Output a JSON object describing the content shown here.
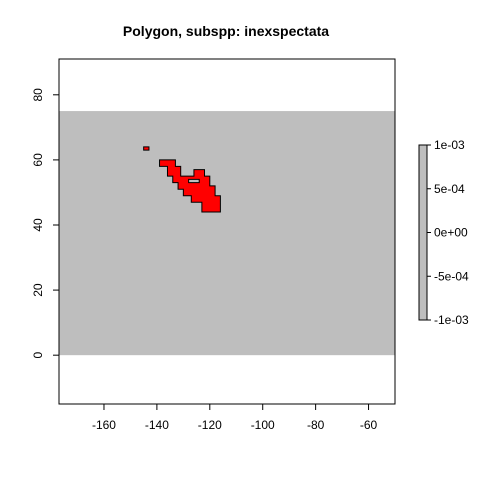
{
  "chart_data": {
    "type": "heatmap",
    "title": "Polygon, subspp: inexspectata",
    "xlabel": "",
    "ylabel": "",
    "xlim": [
      -177,
      -50
    ],
    "ylim": [
      -15,
      91
    ],
    "x_ticks": [
      {
        "value": -160,
        "label": "-160"
      },
      {
        "value": -140,
        "label": "-140"
      },
      {
        "value": -120,
        "label": "-120"
      },
      {
        "value": -100,
        "label": "-100"
      },
      {
        "value": -80,
        "label": "-80"
      },
      {
        "value": -60,
        "label": "-60"
      }
    ],
    "y_ticks": [
      {
        "value": 0,
        "label": "0"
      },
      {
        "value": 20,
        "label": "20"
      },
      {
        "value": 40,
        "label": "40"
      },
      {
        "value": 60,
        "label": "60"
      },
      {
        "value": 80,
        "label": "80"
      }
    ],
    "raster": {
      "xmin": -177,
      "xmax": -50,
      "ymin": 0,
      "ymax": 75,
      "value": 0,
      "color": "#bebebe"
    },
    "polygon": {
      "fill": "#ff0000",
      "stroke": "#000000",
      "parts": [
        [
          [
            -145,
            63
          ],
          [
            -143,
            63
          ],
          [
            -143,
            64
          ],
          [
            -145,
            64
          ]
        ],
        [
          [
            -139,
            58
          ],
          [
            -139,
            60
          ],
          [
            -133,
            60
          ],
          [
            -133,
            58
          ],
          [
            -131,
            58
          ],
          [
            -131,
            55
          ],
          [
            -126,
            55
          ],
          [
            -126,
            57
          ],
          [
            -122,
            57
          ],
          [
            -122,
            55
          ],
          [
            -120,
            55
          ],
          [
            -120,
            52
          ],
          [
            -118,
            52
          ],
          [
            -118,
            49
          ],
          [
            -116,
            49
          ],
          [
            -116,
            44
          ],
          [
            -123,
            44
          ],
          [
            -123,
            47
          ],
          [
            -127,
            47
          ],
          [
            -127,
            49
          ],
          [
            -130,
            49
          ],
          [
            -130,
            51
          ],
          [
            -132,
            51
          ],
          [
            -132,
            53
          ],
          [
            -134,
            53
          ],
          [
            -134,
            55
          ],
          [
            -136,
            55
          ],
          [
            -136,
            58
          ]
        ]
      ],
      "hole": [
        [
          -128,
          53
        ],
        [
          -128,
          54
        ],
        [
          -124,
          54
        ],
        [
          -124,
          53
        ]
      ]
    },
    "legend": {
      "position": "right",
      "ticks": [
        {
          "value": 0.001,
          "label": "1e-03"
        },
        {
          "value": 0.0005,
          "label": "5e-04"
        },
        {
          "value": 0,
          "label": "0e+00"
        },
        {
          "value": -0.0005,
          "label": "-5e-04"
        },
        {
          "value": -0.001,
          "label": "-1e-03"
        }
      ],
      "range": [
        -0.001,
        0.001
      ],
      "color": "#bebebe"
    },
    "grid": false
  }
}
